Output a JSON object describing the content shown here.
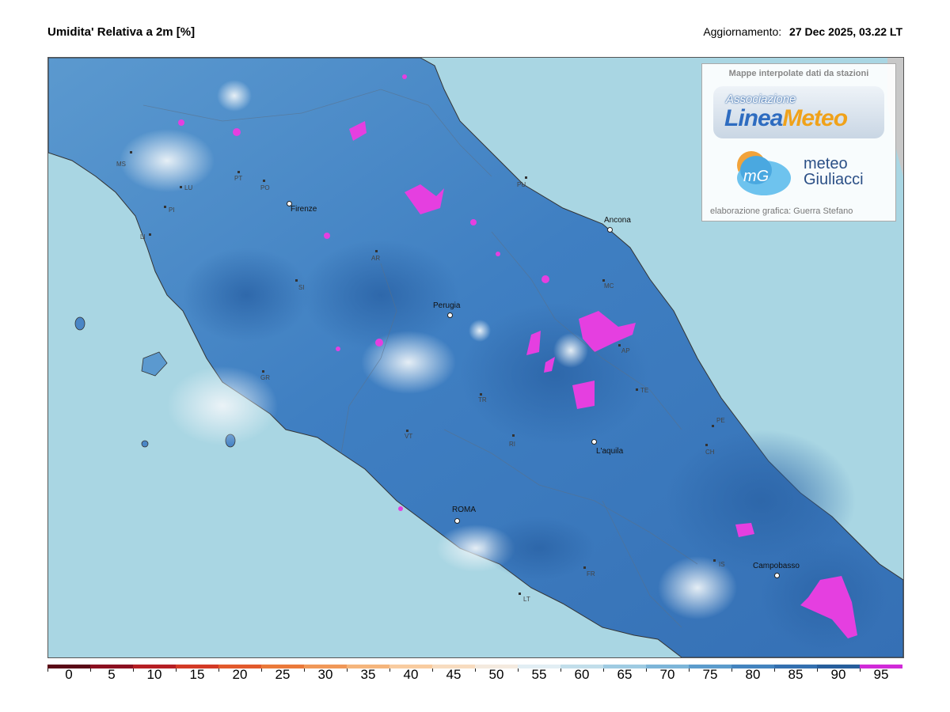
{
  "header": {
    "title": "Umidita' Relativa a 2m [%]",
    "update_label": "Aggiornamento:",
    "update_value": "27 Dec 2025, 03.22 LT"
  },
  "credit": {
    "header": "Mappe interpolate dati da stazioni",
    "logo1_small": "Associazione",
    "logo1_big_a": "Linea",
    "logo1_big_b": "Meteo",
    "logo2_badge": "mG",
    "logo2_line1": "meteo",
    "logo2_line2": "Giuliacci",
    "footer": "elaborazione grafica: Guerra Stefano"
  },
  "cities": [
    {
      "name": "Firenze"
    },
    {
      "name": "Ancona"
    },
    {
      "name": "Perugia"
    },
    {
      "name": "L'aquila"
    },
    {
      "name": "ROMA"
    },
    {
      "name": "Campobasso"
    }
  ],
  "provinces": [
    "MS",
    "LU",
    "PI",
    "LI",
    "PT",
    "PO",
    "AR",
    "SI",
    "GR",
    "PU",
    "MC",
    "AP",
    "TE",
    "PE",
    "CH",
    "TR",
    "VT",
    "RI",
    "IS",
    "FR",
    "LT"
  ],
  "legend": {
    "values": [
      "0",
      "5",
      "10",
      "15",
      "20",
      "25",
      "30",
      "35",
      "40",
      "45",
      "50",
      "55",
      "60",
      "65",
      "70",
      "75",
      "80",
      "85",
      "90",
      "95"
    ],
    "colors": [
      "#5a0a16",
      "#8b1020",
      "#b51f24",
      "#d33a26",
      "#e25a2c",
      "#ea7a3a",
      "#f09858",
      "#f5b57c",
      "#f8cca0",
      "#f7dcc0",
      "#f4eadf",
      "#e2eef4",
      "#c2deea",
      "#9fcbe2",
      "#7db5d8",
      "#5c9ccc",
      "#4484bf",
      "#3470b0",
      "#275e9c",
      "#d12ad8"
    ]
  },
  "colors": {
    "sea": "#a9d6e3",
    "land_humid": "#3c78bc",
    "saturation": "#e53fe0"
  }
}
